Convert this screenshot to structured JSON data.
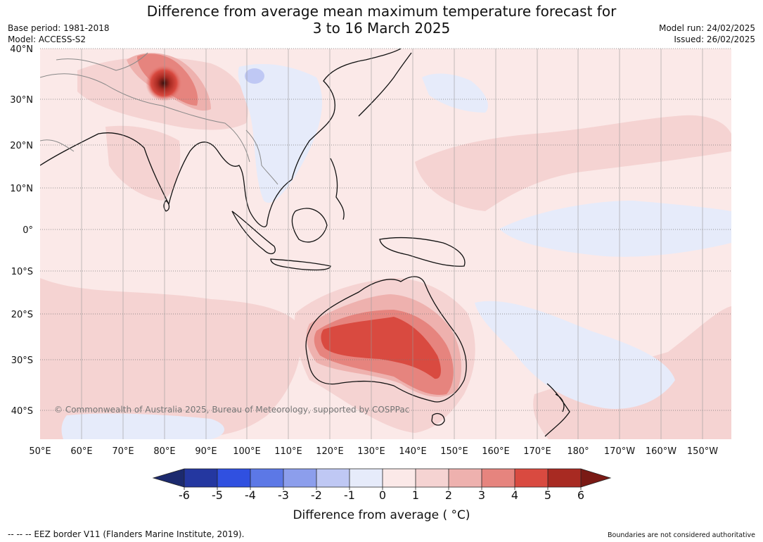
{
  "header": {
    "title_line1": "Difference from average mean maximum temperature forecast for",
    "title_line2": "3 to 16 March 2025",
    "base_period": "Base period: 1981-2018",
    "model": "Model: ACCESS-S2",
    "model_run": "Model run: 24/02/2025",
    "issued": "Issued: 26/02/2025"
  },
  "map": {
    "lat_labels": [
      "40°N",
      "30°N",
      "20°N",
      "10°N",
      "0°",
      "10°S",
      "20°S",
      "30°S",
      "40°S"
    ],
    "lon_labels": [
      "50°E",
      "60°E",
      "70°E",
      "80°E",
      "90°E",
      "100°E",
      "110°E",
      "120°E",
      "130°E",
      "140°E",
      "150°E",
      "160°E",
      "170°E",
      "180°",
      "170°W",
      "160°W",
      "150°W"
    ],
    "copyright": "© Commonwealth of Australia 2025, Bureau of Meteorology, supported by COSPPac"
  },
  "colorbar": {
    "ticks": [
      "-6",
      "-5",
      "-4",
      "-3",
      "-2",
      "-1",
      "0",
      "1",
      "2",
      "3",
      "4",
      "5",
      "6"
    ],
    "colors": [
      "#2437a0",
      "#3050e0",
      "#5c78e6",
      "#8c9eec",
      "#bfc8f4",
      "#e6ebfa",
      "#fbe9e8",
      "#f5d3d2",
      "#eeb1ae",
      "#e6847e",
      "#d94a40",
      "#a82a22"
    ],
    "under_color": "#1c2a6e",
    "over_color": "#7a1a15",
    "label": "Difference from average ( °C)"
  },
  "footer": {
    "eez_note": "--  --  -- EEZ border V11 (Flanders Marine Institute, 2019).",
    "boundaries_note": "Boundaries are not considered authoritative"
  }
}
